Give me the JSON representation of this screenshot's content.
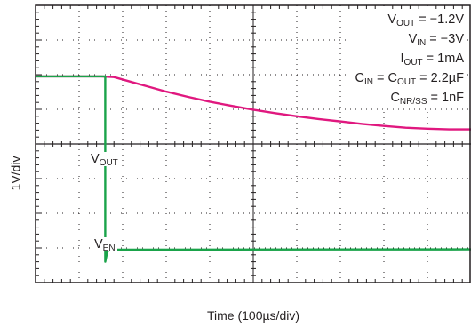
{
  "chart_data": {
    "type": "line",
    "xlabel": "Time (100µs/div)",
    "ylabel": "1V/div",
    "x_divisions": 10,
    "y_divisions": 8,
    "annotations": [
      {
        "main": "V",
        "sub": "OUT",
        "rest": " = −1.2V"
      },
      {
        "main": "V",
        "sub": "IN",
        "rest": " = −3V"
      },
      {
        "main": "I",
        "sub": "OUT",
        "rest": " = 1mA"
      },
      {
        "main": "C",
        "sub": "IN",
        "rest": " = C",
        "sub2": "OUT",
        "rest2": " = 2.2µF"
      },
      {
        "main": "C",
        "sub": "NR/SS",
        "rest": " = 1nF"
      }
    ],
    "series": [
      {
        "name_main": "V",
        "name_sub": "OUT",
        "color": "#e0187f",
        "x_div": [
          0,
          1.5,
          1.8,
          2.2,
          2.6,
          3,
          3.5,
          4,
          4.5,
          5,
          5.5,
          6,
          6.5,
          7,
          7.5,
          8,
          8.5,
          9,
          9.5,
          10
        ],
        "y_div": [
          5.95,
          5.95,
          5.93,
          5.79,
          5.65,
          5.51,
          5.36,
          5.22,
          5.1,
          4.99,
          4.89,
          4.8,
          4.72,
          4.65,
          4.58,
          4.52,
          4.47,
          4.44,
          4.42,
          4.42
        ]
      },
      {
        "name_main": "V",
        "name_sub": "EN",
        "color": "#1aa34a",
        "x_div": [
          0,
          1.6,
          1.6,
          1.65,
          1.72,
          1.8,
          10
        ],
        "y_div": [
          5.95,
          5.95,
          0.6,
          0.9,
          0.95,
          0.95,
          0.96
        ]
      }
    ]
  }
}
